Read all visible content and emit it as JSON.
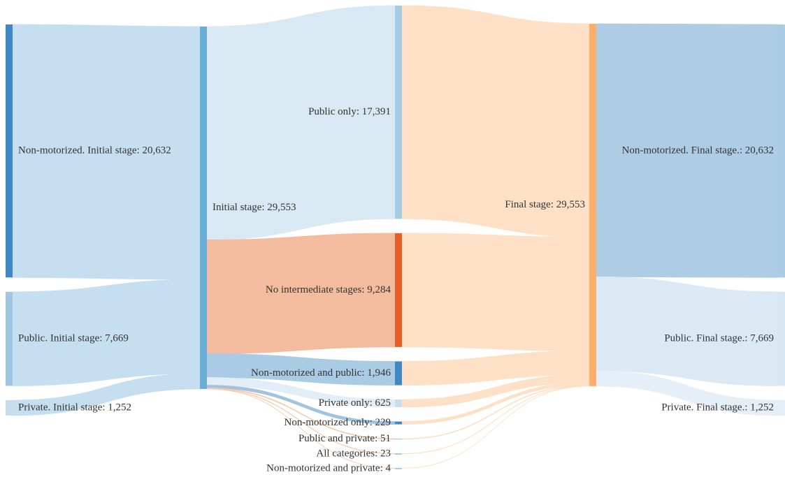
{
  "chart_data": {
    "type": "sankey",
    "nodes": [
      {
        "label": "Non-motorized. Initial stage: 20,632",
        "value": 20632,
        "color": "#3f87c5"
      },
      {
        "label": "Public. Initial stage: 7,669",
        "value": 7669,
        "color": "#9fc7e2"
      },
      {
        "label": "Private. Initial stage: 1,252",
        "value": 1252,
        "color": "#c6dcef"
      },
      {
        "label": "Initial stage: 29,553",
        "value": 29553,
        "color": "#6aaed6"
      },
      {
        "label": "Public only: 17,391",
        "value": 17391,
        "color": "#a6cde3"
      },
      {
        "label": "No intermediate stages: 9,284",
        "value": 9284,
        "color": "#e6612a"
      },
      {
        "label": "Non-motorized and public: 1,946",
        "value": 1946,
        "color": "#3f87c5"
      },
      {
        "label": "Private only: 625",
        "value": 625,
        "color": "#c6dcef"
      },
      {
        "label": "Non-motorized only: 229",
        "value": 229,
        "color": "#3f87c5"
      },
      {
        "label": "Public and private: 51",
        "value": 51,
        "color": "#9fc7e2"
      },
      {
        "label": "All categories: 23",
        "value": 23,
        "color": "#6aaed6"
      },
      {
        "label": "Non-motorized and private: 4",
        "value": 4,
        "color": "#6aaed6"
      },
      {
        "label": "Final stage: 29,553",
        "value": 29553,
        "color": "#fdae6b"
      },
      {
        "label": "Non-motorized. Final stage.: 20,632",
        "value": 20632,
        "color": "#aacce4"
      },
      {
        "label": "Public. Final stage.: 7,669",
        "value": 7669,
        "color": "#d6e7f3"
      },
      {
        "label": "Private. Final stage.: 1,252",
        "value": 1252,
        "color": "#e4eef8"
      }
    ],
    "links": [
      {
        "source": 0,
        "target": 3,
        "value": 20632,
        "color": "#c6dff0"
      },
      {
        "source": 1,
        "target": 3,
        "value": 7669,
        "color": "#c6dff0"
      },
      {
        "source": 2,
        "target": 3,
        "value": 1252,
        "color": "#c6dff0"
      },
      {
        "source": 3,
        "target": 4,
        "value": 17391,
        "color": "#d9e9f4"
      },
      {
        "source": 3,
        "target": 5,
        "value": 9284,
        "color": "#f3bc9f"
      },
      {
        "source": 3,
        "target": 6,
        "value": 1946,
        "color": "#a9cbe3"
      },
      {
        "source": 3,
        "target": 7,
        "value": 625,
        "color": "#e2edf7"
      },
      {
        "source": 3,
        "target": 8,
        "value": 229,
        "color": "#9fc3e0"
      },
      {
        "source": 3,
        "target": 9,
        "value": 51,
        "color": "#f8c9a8"
      },
      {
        "source": 3,
        "target": 10,
        "value": 23,
        "color": "#f8c9a8"
      },
      {
        "source": 3,
        "target": 11,
        "value": 4,
        "color": "#f8c9a8"
      },
      {
        "source": 4,
        "target": 12,
        "value": 17391,
        "color": "#fde0c5"
      },
      {
        "source": 5,
        "target": 12,
        "value": 9284,
        "color": "#fde0c5"
      },
      {
        "source": 6,
        "target": 12,
        "value": 1946,
        "color": "#fde0c5"
      },
      {
        "source": 7,
        "target": 12,
        "value": 625,
        "color": "#fde0c5"
      },
      {
        "source": 8,
        "target": 12,
        "value": 229,
        "color": "#fde0c5"
      },
      {
        "source": 9,
        "target": 12,
        "value": 51,
        "color": "#fde0c5"
      },
      {
        "source": 10,
        "target": 12,
        "value": 23,
        "color": "#fde0c5"
      },
      {
        "source": 11,
        "target": 12,
        "value": 4,
        "color": "#fde0c5"
      },
      {
        "source": 12,
        "target": 13,
        "value": 20632,
        "color": "#aecde4"
      },
      {
        "source": 12,
        "target": 14,
        "value": 7669,
        "color": "#dbe9f4"
      },
      {
        "source": 12,
        "target": 15,
        "value": 1252,
        "color": "#e6eef8"
      }
    ]
  }
}
